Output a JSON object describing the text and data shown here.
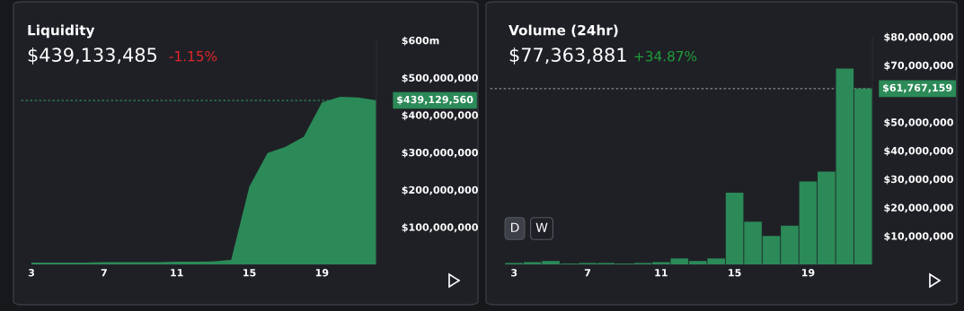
{
  "chart_data": [
    {
      "type": "area",
      "title": "Liquidity",
      "subtitle": "$439,133,485",
      "annotations": [
        "-1.15%"
      ],
      "x": [
        3,
        4,
        5,
        6,
        7,
        8,
        9,
        10,
        11,
        12,
        13,
        14,
        15,
        16,
        17,
        18,
        19,
        20,
        21,
        22
      ],
      "series": [
        {
          "color": "#2b8a57",
          "values": [
            5000000,
            5000000,
            5000000,
            5000000,
            6000000,
            6000000,
            6000000,
            6000000,
            7000000,
            7000000,
            8000000,
            12000000,
            208000000,
            298000000,
            315000000,
            342000000,
            434000000,
            449000000,
            447000000,
            439000000
          ]
        }
      ],
      "xlim": [
        3,
        22
      ],
      "xticks": [
        3,
        7,
        11,
        15,
        19
      ],
      "ylim": [
        0,
        600000000
      ],
      "yticks": [
        {
          "value": 100000000,
          "label": "$100,000,000"
        },
        {
          "value": 200000000,
          "label": "$200,000,000"
        },
        {
          "value": 300000000,
          "label": "$300,000,000"
        },
        {
          "value": 400000000,
          "label": "$400,000,000"
        },
        {
          "value": 500000000,
          "label": "$500,000,000"
        },
        {
          "value": 600000000,
          "label": "$600m"
        }
      ],
      "ref_lines": [
        {
          "axis": "y",
          "value": 439129560,
          "label": "$439,129,560",
          "color": "#2b8a57",
          "line_style": "dotted"
        }
      ],
      "grid": false,
      "legend": false
    },
    {
      "type": "bar",
      "title": "Volume (24hr)",
      "subtitle": "$77,363,881",
      "annotations": [
        "+34.87%",
        "D",
        "W"
      ],
      "x": [
        3,
        4,
        5,
        6,
        7,
        8,
        9,
        10,
        11,
        12,
        13,
        14,
        15,
        16,
        17,
        18,
        19,
        20,
        21,
        22
      ],
      "series": [
        {
          "color": "#2b8a57",
          "values": [
            500000,
            800000,
            1200000,
            300000,
            500000,
            500000,
            300000,
            500000,
            800000,
            2100000,
            1200000,
            2100000,
            25200000,
            15000000,
            10000000,
            13600000,
            29100000,
            32600000,
            68800000,
            61800000
          ]
        }
      ],
      "xlim": [
        2.5,
        22.5
      ],
      "xticks": [
        3,
        7,
        11,
        15,
        19
      ],
      "ylim": [
        0,
        80000000
      ],
      "yticks": [
        {
          "value": 10000000,
          "label": "$10,000,000"
        },
        {
          "value": 20000000,
          "label": "$20,000,000"
        },
        {
          "value": 30000000,
          "label": "$30,000,000"
        },
        {
          "value": 40000000,
          "label": "$40,000,000"
        },
        {
          "value": 50000000,
          "label": "$50,000,000"
        },
        {
          "value": 70000000,
          "label": "$70,000,000"
        },
        {
          "value": 80000000,
          "label": "$80,000,000"
        }
      ],
      "ref_lines": [
        {
          "axis": "y",
          "value": 61767159,
          "label": "$61,767,159",
          "color": "#8a8d93",
          "line_style": "dotted"
        }
      ],
      "grid": false,
      "legend": false
    }
  ]
}
